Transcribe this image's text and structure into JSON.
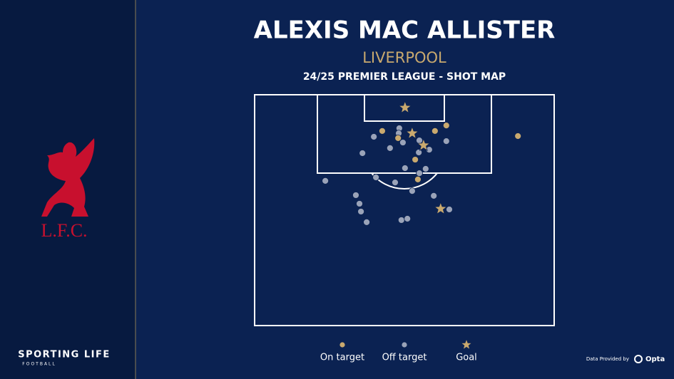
{
  "branding": {
    "logo": "L.F.C.",
    "brand": "SPORTING LIFE",
    "brand_sub": "FOOTBALL",
    "credit": "Data Provided by",
    "provider": "Opta"
  },
  "chart_data": {
    "type": "scatter",
    "title": "ALEXIS MAC ALLISTER",
    "subtitle": "LIVERPOOL",
    "caption": "24/25 PREMIER LEAGUE - SHOT MAP",
    "xlim": [
      0,
      100
    ],
    "ylim": [
      0,
      100
    ],
    "series": [
      {
        "name": "On target",
        "color": "#c9a96e",
        "marker": "dot",
        "x": [
          42.6,
          47.9,
          60.2,
          64.0,
          53.6,
          54.5,
          87.9
        ],
        "values": [
          15.7,
          18.8,
          15.7,
          13.3,
          28.1,
          36.7,
          17.9
        ]
      },
      {
        "name": "Off target",
        "color": "#9aa3b8",
        "marker": "dot",
        "x": [
          48.3,
          48.1,
          39.8,
          45.2,
          36.0,
          49.5,
          55.0,
          64.0,
          58.3,
          54.8,
          50.2,
          57.1,
          55.0,
          40.5,
          23.6,
          46.9,
          52.6,
          33.8,
          59.8,
          35.0,
          35.5,
          65.0,
          37.4,
          49.0,
          51.0
        ],
        "values": [
          14.5,
          16.7,
          18.2,
          23.1,
          25.3,
          20.7,
          19.8,
          20.1,
          23.8,
          25.0,
          31.8,
          32.1,
          34.0,
          35.8,
          37.3,
          38.0,
          41.7,
          43.5,
          43.8,
          47.2,
          50.6,
          49.7,
          55.2,
          54.3,
          53.7
        ]
      },
      {
        "name": "Goal",
        "color": "#c9a96e",
        "marker": "star",
        "x": [
          50.2,
          52.6,
          56.4,
          62.1
        ],
        "values": [
          5.6,
          16.7,
          21.9,
          49.4
        ]
      }
    ]
  }
}
